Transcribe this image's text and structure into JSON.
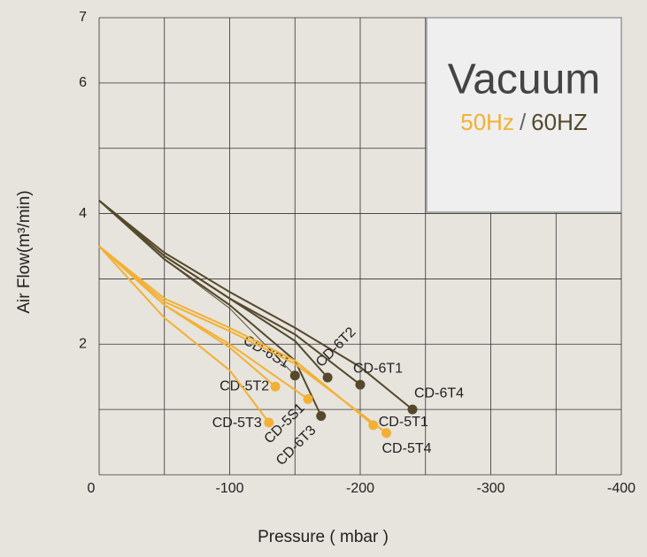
{
  "chart_data": {
    "type": "line",
    "xlabel": "Pressure ( mbar )",
    "ylabel": "Air Flow(m³/min)",
    "xlim": [
      0,
      -400
    ],
    "ylim": [
      0,
      7
    ],
    "xticks": [
      0,
      {
        "value": -50,
        "label": null
      },
      -100,
      {
        "value": -150,
        "label": null
      },
      -200,
      {
        "value": -250,
        "label": null
      },
      -300,
      {
        "value": -350,
        "label": null
      },
      -400
    ],
    "yticks": [
      {
        "value": 0,
        "label": null
      },
      {
        "value": 1,
        "label": null
      },
      2,
      {
        "value": 3,
        "label": null
      },
      4,
      {
        "value": 5,
        "label": null
      },
      6,
      7
    ],
    "grid": true,
    "legend": {
      "title": "Vacuum",
      "items": [
        {
          "label": "50Hz",
          "color": "#f2b134"
        },
        {
          "label": "60HZ",
          "color": "#54492b"
        }
      ],
      "separator": "/",
      "position": "upper right"
    },
    "series": [
      {
        "name": "CD-6T4",
        "color": "#54492b",
        "x": [
          0,
          -50,
          -100,
          -150,
          -200,
          -240
        ],
        "values": [
          4.2,
          3.4,
          2.8,
          2.25,
          1.65,
          1.0
        ]
      },
      {
        "name": "CD-6T1",
        "color": "#54492b",
        "x": [
          0,
          -50,
          -100,
          -150,
          -200
        ],
        "values": [
          4.2,
          3.35,
          2.7,
          2.15,
          1.38
        ]
      },
      {
        "name": "CD-6T2",
        "color": "#54492b",
        "x": [
          0,
          -50,
          -100,
          -150,
          -175
        ],
        "values": [
          4.2,
          3.35,
          2.7,
          2.05,
          1.49
        ]
      },
      {
        "name": "CD-6S1",
        "color": "#54492b",
        "x": [
          0,
          -50,
          -100,
          -150
        ],
        "values": [
          4.2,
          3.3,
          2.55,
          1.52
        ]
      },
      {
        "name": "CD-6T3",
        "color": "#54492b",
        "x": [
          0,
          -50,
          -100,
          -150,
          -170
        ],
        "values": [
          4.2,
          3.3,
          2.6,
          1.75,
          0.9
        ]
      },
      {
        "name": "CD-5T1",
        "color": "#f2b134",
        "x": [
          0,
          -50,
          -100,
          -150,
          -210
        ],
        "values": [
          3.5,
          2.7,
          2.25,
          1.75,
          0.76
        ]
      },
      {
        "name": "CD-5T4",
        "color": "#f2b134",
        "x": [
          0,
          -50,
          -100,
          -150,
          -220
        ],
        "values": [
          3.5,
          2.65,
          2.2,
          1.7,
          0.64
        ]
      },
      {
        "name": "CD-5T2",
        "color": "#f2b134",
        "x": [
          0,
          -50,
          -100,
          -135
        ],
        "values": [
          3.5,
          2.6,
          1.95,
          1.35
        ]
      },
      {
        "name": "CD-5S1",
        "color": "#f2b134",
        "x": [
          0,
          -50,
          -100,
          -160
        ],
        "values": [
          3.5,
          2.6,
          2.0,
          1.16
        ]
      },
      {
        "name": "CD-5T3",
        "color": "#f2b134",
        "x": [
          0,
          -50,
          -100,
          -130
        ],
        "values": [
          3.5,
          2.4,
          1.6,
          0.8
        ]
      }
    ]
  }
}
